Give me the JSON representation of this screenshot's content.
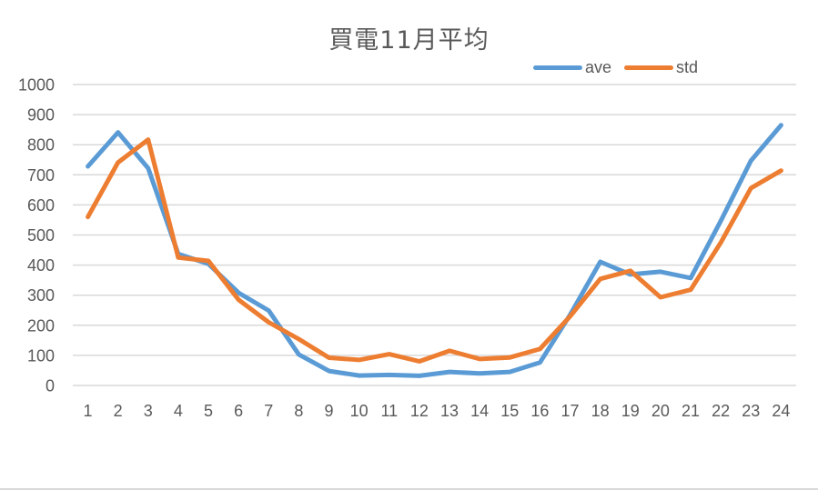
{
  "chart_data": {
    "type": "line",
    "title": "買電11月平均",
    "xlabel": "",
    "ylabel": "",
    "categories": [
      "1",
      "2",
      "3",
      "4",
      "5",
      "6",
      "7",
      "8",
      "9",
      "10",
      "11",
      "12",
      "13",
      "14",
      "15",
      "16",
      "17",
      "18",
      "19",
      "20",
      "21",
      "22",
      "23",
      "24"
    ],
    "series": [
      {
        "name": "ave",
        "color": "#5B9BD5",
        "values": [
          728,
          841,
          722,
          437,
          404,
          308,
          249,
          103,
          48,
          33,
          35,
          32,
          45,
          40,
          45,
          76,
          235,
          411,
          369,
          378,
          357,
          547,
          747,
          865
        ]
      },
      {
        "name": "std",
        "color": "#ED7D31",
        "values": [
          560,
          741,
          817,
          425,
          414,
          285,
          210,
          154,
          92,
          85,
          104,
          80,
          115,
          88,
          93,
          121,
          230,
          354,
          381,
          293,
          318,
          475,
          656,
          714
        ]
      }
    ],
    "ylim": [
      0,
      1000
    ],
    "yticks": [
      0,
      100,
      200,
      300,
      400,
      500,
      600,
      700,
      800,
      900,
      1000
    ],
    "grid": true,
    "legend_position": "top-right"
  },
  "legend": {
    "items": [
      {
        "label": "ave",
        "color": "#5B9BD5"
      },
      {
        "label": "std",
        "color": "#ED7D31"
      }
    ]
  },
  "colors": {
    "gridline": "#D9D9D9",
    "text": "#595959",
    "background": "#FFFFFF"
  }
}
